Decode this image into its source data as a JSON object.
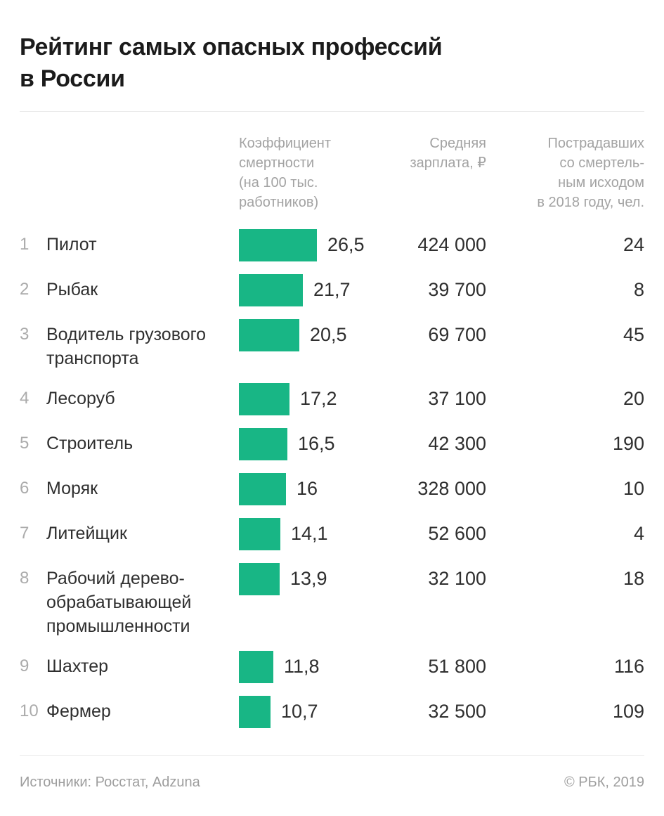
{
  "title": "Рейтинг самых опасных профессий\nв России",
  "columns": {
    "death_rate": "Коэффициент\nсмертности\n(на 100 тыс.\nработников)",
    "salary": "Средняя\nзарплата, ₽",
    "deaths": "Пострадавших\nсо смертель-\nным исходом\nв 2018 году, чел."
  },
  "table": {
    "rows": [
      {
        "rank": "1",
        "name": "Пилот",
        "coef": "26,5",
        "coef_value": 26.5,
        "salary": "424 000",
        "deaths": "24"
      },
      {
        "rank": "2",
        "name": "Рыбак",
        "coef": "21,7",
        "coef_value": 21.7,
        "salary": "39 700",
        "deaths": "8"
      },
      {
        "rank": "3",
        "name": "Водитель грузового транспорта",
        "coef": "20,5",
        "coef_value": 20.5,
        "salary": "69 700",
        "deaths": "45"
      },
      {
        "rank": "4",
        "name": "Лесоруб",
        "coef": "17,2",
        "coef_value": 17.2,
        "salary": "37 100",
        "deaths": "20"
      },
      {
        "rank": "5",
        "name": "Строитель",
        "coef": "16,5",
        "coef_value": 16.5,
        "salary": "42 300",
        "deaths": "190"
      },
      {
        "rank": "6",
        "name": "Моряк",
        "coef": "16",
        "coef_value": 16.0,
        "salary": "328 000",
        "deaths": "10"
      },
      {
        "rank": "7",
        "name": "Литейщик",
        "coef": "14,1",
        "coef_value": 14.1,
        "salary": "52 600",
        "deaths": "4"
      },
      {
        "rank": "8",
        "name": "Рабочий дерево-обрабатывающей промышленности",
        "coef": "13,9",
        "coef_value": 13.9,
        "salary": "32 100",
        "deaths": "18"
      },
      {
        "rank": "9",
        "name": "Шахтер",
        "coef": "11,8",
        "coef_value": 11.8,
        "salary": "51 800",
        "deaths": "116"
      },
      {
        "rank": "10",
        "name": "Фермер",
        "coef": "10,7",
        "coef_value": 10.7,
        "salary": "32 500",
        "deaths": "109"
      }
    ]
  },
  "footer": {
    "sources": "Источники: Росстат, Adzuna",
    "copyright": "© РБК, 2019"
  },
  "colors": {
    "bar": "#18b685",
    "title": "#1b1b1b",
    "header_text": "#a3a3a3",
    "body_text": "#2f2f2f",
    "rank_text": "#ababab",
    "footer_text": "#9e9e9e",
    "divider": "#e8e8e8",
    "background": "#ffffff"
  },
  "chart_data": {
    "type": "bar",
    "orientation": "horizontal",
    "title": "Рейтинг самых опасных профессий в России",
    "categories": [
      "Пилот",
      "Рыбак",
      "Водитель грузового транспорта",
      "Лесоруб",
      "Строитель",
      "Моряк",
      "Литейщик",
      "Рабочий деревообрабатывающей промышленности",
      "Шахтер",
      "Фермер"
    ],
    "series": [
      {
        "name": "Коэффициент смертности (на 100 тыс. работников)",
        "values": [
          26.5,
          21.7,
          20.5,
          17.2,
          16.5,
          16,
          14.1,
          13.9,
          11.8,
          10.7
        ]
      },
      {
        "name": "Средняя зарплата, ₽",
        "values": [
          424000,
          39700,
          69700,
          37100,
          42300,
          328000,
          52600,
          32100,
          51800,
          32500
        ]
      },
      {
        "name": "Пострадавших со смертельным исходом в 2018 году, чел.",
        "values": [
          24,
          8,
          45,
          20,
          190,
          10,
          4,
          18,
          116,
          109
        ]
      }
    ],
    "bar_series": "Коэффициент смертности (на 100 тыс. работников)",
    "xlim": [
      0,
      26.5
    ],
    "grid": false,
    "legend": "none",
    "value_labels": true
  }
}
